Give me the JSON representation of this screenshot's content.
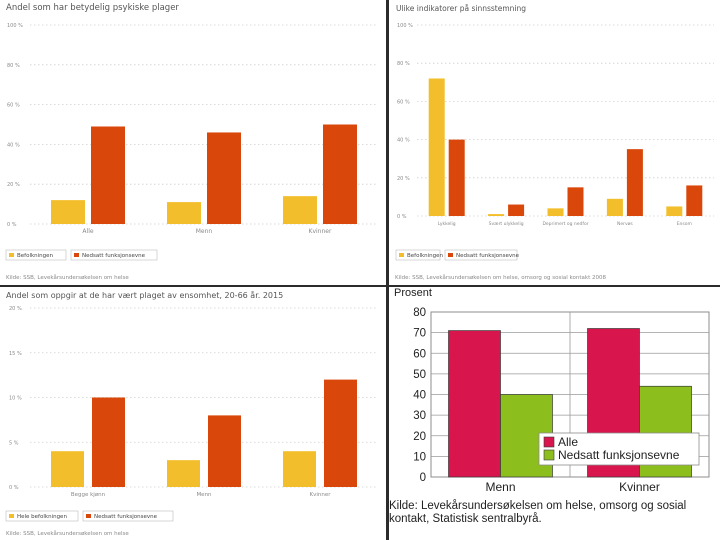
{
  "colors": {
    "population": "#f2be2b",
    "disability": "#d9470a",
    "alle": "#d8154c",
    "nedsatt": "#8cbf1e",
    "grid": "#cfcfcf",
    "tick_text": "#8a8a8a",
    "title_text": "#555555"
  },
  "chart_data": [
    {
      "id": "tl",
      "type": "bar",
      "title": "Andel som har betydelig psykiske plager",
      "categories": [
        "Alle",
        "Menn",
        "Kvinner"
      ],
      "series": [
        {
          "name": "Befolkningen",
          "values": [
            12,
            11,
            14
          ]
        },
        {
          "name": "Nedsatt funksjonsevne",
          "values": [
            49,
            46,
            50
          ]
        }
      ],
      "ylim": [
        0,
        100
      ],
      "yticks": [
        0,
        20,
        40,
        60,
        80,
        100
      ],
      "ytick_labels": [
        "0 %",
        "20 %",
        "40 %",
        "60 %",
        "80 %",
        "100 %"
      ],
      "source": "Kilde: SSB, Levekårsundersøkelsen om helse"
    },
    {
      "id": "tr",
      "type": "bar",
      "title": "Ulike indikatorer på sinnsstemning",
      "categories": [
        "Lykkelig",
        "Svært ulykkelig",
        "Deprimert og nedfor",
        "Nervøs",
        "Ensom"
      ],
      "series": [
        {
          "name": "Befolkningen",
          "values": [
            72,
            1,
            4,
            9,
            5
          ]
        },
        {
          "name": "Nedsatt funksjonsevne",
          "values": [
            40,
            6,
            15,
            35,
            16
          ]
        }
      ],
      "ylim": [
        0,
        100
      ],
      "yticks": [
        0,
        20,
        40,
        60,
        80,
        100
      ],
      "ytick_labels": [
        "0 %",
        "20 %",
        "40 %",
        "60 %",
        "80 %",
        "100 %"
      ],
      "source": "Kilde: SSB, Levekårsundersøkelsen om helse, omsorg og sosial kontakt 2008"
    },
    {
      "id": "bl",
      "type": "bar",
      "title": "Andel som oppgir at de har vært plaget av ensomhet, 20-66 år. 2015",
      "categories": [
        "Begge kjønn",
        "Menn",
        "Kvinner"
      ],
      "series": [
        {
          "name": "Hele befolkningen",
          "values": [
            4,
            3,
            4
          ]
        },
        {
          "name": "Nedsatt funksjonsevne",
          "values": [
            10,
            8,
            12
          ]
        }
      ],
      "ylim": [
        0,
        20
      ],
      "yticks": [
        0,
        5,
        10,
        15,
        20
      ],
      "ytick_labels": [
        "0 %",
        "5 %",
        "10 %",
        "15 %",
        "20 %"
      ],
      "source": "Kilde: SSB, Levekårsundersøkelsen om helse"
    },
    {
      "id": "br",
      "type": "bar",
      "ylabel": "Prosent",
      "categories": [
        "Menn",
        "Kvinner"
      ],
      "series": [
        {
          "name": "Alle",
          "values": [
            71,
            72
          ]
        },
        {
          "name": "Nedsatt funksjonsevne",
          "values": [
            40,
            44
          ]
        }
      ],
      "ylim": [
        0,
        80
      ],
      "yticks": [
        0,
        10,
        20,
        30,
        40,
        50,
        60,
        70,
        80
      ],
      "ytick_labels": [
        "0",
        "10",
        "20",
        "30",
        "40",
        "50",
        "60",
        "70",
        "80"
      ],
      "legend": "bottom-right",
      "source": "Kilde: Levekårsundersøkelsen om helse, omsorg og sosial kontakt, Statistisk sentralbyrå."
    }
  ]
}
